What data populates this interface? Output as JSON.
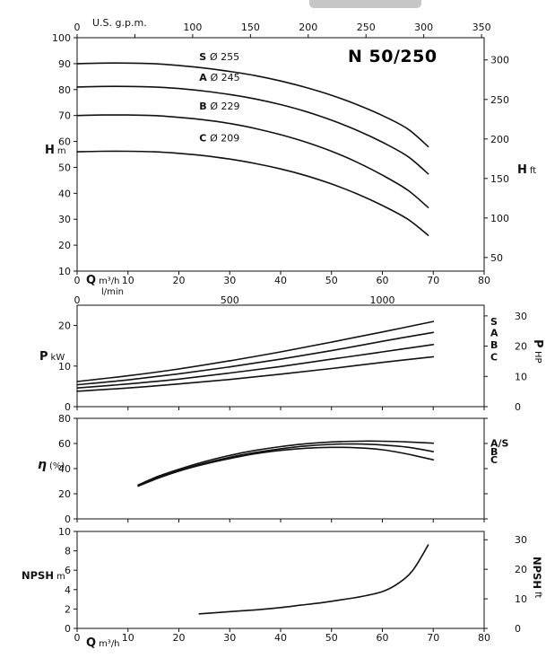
{
  "page": {
    "background": "#ffffff",
    "ink_color": "#111111",
    "scrollbar_color": "#c6c6c6"
  },
  "chart_data": [
    {
      "id": "head-capacity",
      "type": "line",
      "title": "N 50/250",
      "x_axis": {
        "name": "Q",
        "unit": "m³/h",
        "min": 0,
        "max": 80,
        "ticks": [
          0,
          10,
          20,
          30,
          40,
          50,
          60,
          70,
          80
        ]
      },
      "x_axis_top": {
        "name": "U.S. g.p.m.",
        "per_unit": 4.403,
        "ticks": [
          0,
          50,
          100,
          150,
          200,
          250,
          300,
          350
        ],
        "unlabeled": [
          50
        ]
      },
      "x_axis_secondary": {
        "name": "l/min",
        "per_unit": 16.667,
        "ticks": [
          0,
          500,
          1000
        ]
      },
      "y_axis": {
        "name": "H",
        "unit": "m",
        "min": 10,
        "max": 100,
        "ticks": [
          10,
          20,
          30,
          40,
          50,
          60,
          70,
          80,
          90,
          100
        ]
      },
      "y_axis_right": {
        "name": "H",
        "unit": "ft",
        "per_unit": 3.281,
        "ticks": [
          50,
          100,
          150,
          200,
          250,
          300
        ]
      },
      "series": [
        {
          "label": "S",
          "sublabel": "Ø 255",
          "label_at": [
            24,
            91.3
          ],
          "x": [
            0,
            5,
            10,
            15,
            20,
            25,
            30,
            35,
            40,
            45,
            50,
            55,
            60,
            65,
            69
          ],
          "y": [
            90,
            90.2,
            90.2,
            90,
            89.3,
            88.3,
            87,
            85.4,
            83.3,
            80.8,
            77.8,
            74.2,
            70,
            64.8,
            58
          ]
        },
        {
          "label": "A",
          "sublabel": "Ø 245",
          "label_at": [
            24,
            83.3
          ],
          "x": [
            0,
            5,
            10,
            15,
            20,
            25,
            30,
            35,
            40,
            45,
            50,
            55,
            60,
            65,
            69
          ],
          "y": [
            81,
            81.2,
            81.2,
            81,
            80.4,
            79.4,
            78.1,
            76.4,
            74.2,
            71.5,
            68.2,
            64.3,
            59.7,
            54.2,
            47.5
          ]
        },
        {
          "label": "B",
          "sublabel": "Ø 229",
          "label_at": [
            24,
            72.3
          ],
          "x": [
            0,
            5,
            10,
            15,
            20,
            25,
            30,
            35,
            40,
            45,
            50,
            55,
            60,
            65,
            69
          ],
          "y": [
            70,
            70.2,
            70.2,
            70,
            69.3,
            68.3,
            66.9,
            65,
            62.6,
            59.7,
            56.2,
            52,
            47,
            41.2,
            34.5
          ]
        },
        {
          "label": "C",
          "sublabel": "Ø 209",
          "label_at": [
            24,
            60
          ],
          "x": [
            0,
            5,
            10,
            15,
            20,
            25,
            30,
            35,
            40,
            45,
            50,
            55,
            60,
            65,
            69
          ],
          "y": [
            56,
            56.2,
            56.2,
            56,
            55.4,
            54.5,
            53.2,
            51.5,
            49.4,
            46.8,
            43.6,
            39.8,
            35.3,
            30,
            23.8
          ]
        }
      ]
    },
    {
      "id": "power",
      "type": "line",
      "x_axis": {
        "min": 0,
        "max": 80,
        "ticks": [
          0,
          10,
          20,
          30,
          40,
          50,
          60,
          70,
          80
        ]
      },
      "y_axis": {
        "name": "P",
        "unit": "kW",
        "min": 0,
        "max": 25,
        "ticks": [
          0,
          10,
          20
        ]
      },
      "y_axis_right": {
        "name": "P",
        "unit": "HP",
        "per_unit": 1.341,
        "ticks": [
          0,
          10,
          20,
          30
        ]
      },
      "series": [
        {
          "label": "S",
          "end_label_y": 21,
          "x": [
            0,
            10,
            20,
            30,
            40,
            50,
            60,
            70
          ],
          "y": [
            6.2,
            7.6,
            9.3,
            11.3,
            13.5,
            15.9,
            18.4,
            21
          ]
        },
        {
          "label": "A",
          "end_label_y": 18.3,
          "x": [
            0,
            10,
            20,
            30,
            40,
            50,
            60,
            70
          ],
          "y": [
            5.4,
            6.6,
            8.1,
            9.8,
            11.7,
            13.8,
            16.1,
            18.3
          ]
        },
        {
          "label": "B",
          "end_label_y": 15.3,
          "x": [
            0,
            10,
            20,
            30,
            40,
            50,
            60,
            70
          ],
          "y": [
            4.6,
            5.6,
            6.8,
            8.3,
            9.9,
            11.7,
            13.5,
            15.3
          ]
        },
        {
          "label": "C",
          "end_label_y": 12.3,
          "x": [
            0,
            10,
            20,
            30,
            40,
            50,
            60,
            70
          ],
          "y": [
            3.8,
            4.6,
            5.6,
            6.7,
            8,
            9.4,
            10.9,
            12.3
          ]
        }
      ]
    },
    {
      "id": "efficiency",
      "type": "line",
      "x_axis": {
        "min": 0,
        "max": 80,
        "ticks": [
          0,
          10,
          20,
          30,
          40,
          50,
          60,
          70,
          80
        ]
      },
      "y_axis": {
        "name": "η",
        "unit": "(%)",
        "min": 0,
        "max": 80,
        "ticks": [
          0,
          20,
          40,
          60,
          80
        ]
      },
      "series": [
        {
          "label": "A/S",
          "end_label_y": 60.5,
          "x": [
            12,
            16,
            20,
            25,
            30,
            35,
            40,
            45,
            50,
            55,
            60,
            65,
            70
          ],
          "y": [
            27,
            34,
            39.5,
            45.5,
            50.5,
            54.5,
            57.5,
            59.8,
            61.2,
            61.8,
            61.8,
            61.2,
            60.2
          ]
        },
        {
          "label": "B",
          "end_label_y": 53.5,
          "x": [
            12,
            16,
            20,
            25,
            30,
            35,
            40,
            45,
            50,
            55,
            60,
            65,
            70
          ],
          "y": [
            26.5,
            33,
            38.5,
            44.2,
            49,
            52.8,
            55.8,
            58,
            59.3,
            59.6,
            58.8,
            57,
            53.5
          ]
        },
        {
          "label": "C",
          "end_label_y": 47,
          "x": [
            12,
            16,
            20,
            25,
            30,
            35,
            40,
            45,
            50,
            55,
            60,
            65,
            70
          ],
          "y": [
            26,
            32.5,
            38,
            43.5,
            48,
            51.8,
            54.5,
            56.2,
            56.9,
            56.6,
            55,
            51.5,
            47
          ]
        }
      ]
    },
    {
      "id": "npsh",
      "type": "line",
      "x_axis": {
        "name": "Q",
        "unit": "m³/h",
        "min": 0,
        "max": 80,
        "ticks": [
          0,
          10,
          20,
          30,
          40,
          50,
          60,
          70,
          80
        ]
      },
      "y_axis": {
        "name": "NPSH",
        "unit": "m",
        "min": 0,
        "max": 10,
        "ticks": [
          0,
          2,
          4,
          6,
          8,
          10
        ]
      },
      "y_axis_right": {
        "name": "NPSH",
        "unit": "ft",
        "per_unit": 3.281,
        "ticks": [
          0,
          10,
          20,
          30
        ]
      },
      "series": [
        {
          "label": "NPSH",
          "x": [
            24,
            28,
            32,
            36,
            40,
            44,
            48,
            52,
            56,
            60,
            63,
            66,
            69
          ],
          "y": [
            1.5,
            1.65,
            1.8,
            1.95,
            2.15,
            2.4,
            2.65,
            2.95,
            3.3,
            3.8,
            4.6,
            6,
            8.6
          ]
        }
      ]
    }
  ]
}
